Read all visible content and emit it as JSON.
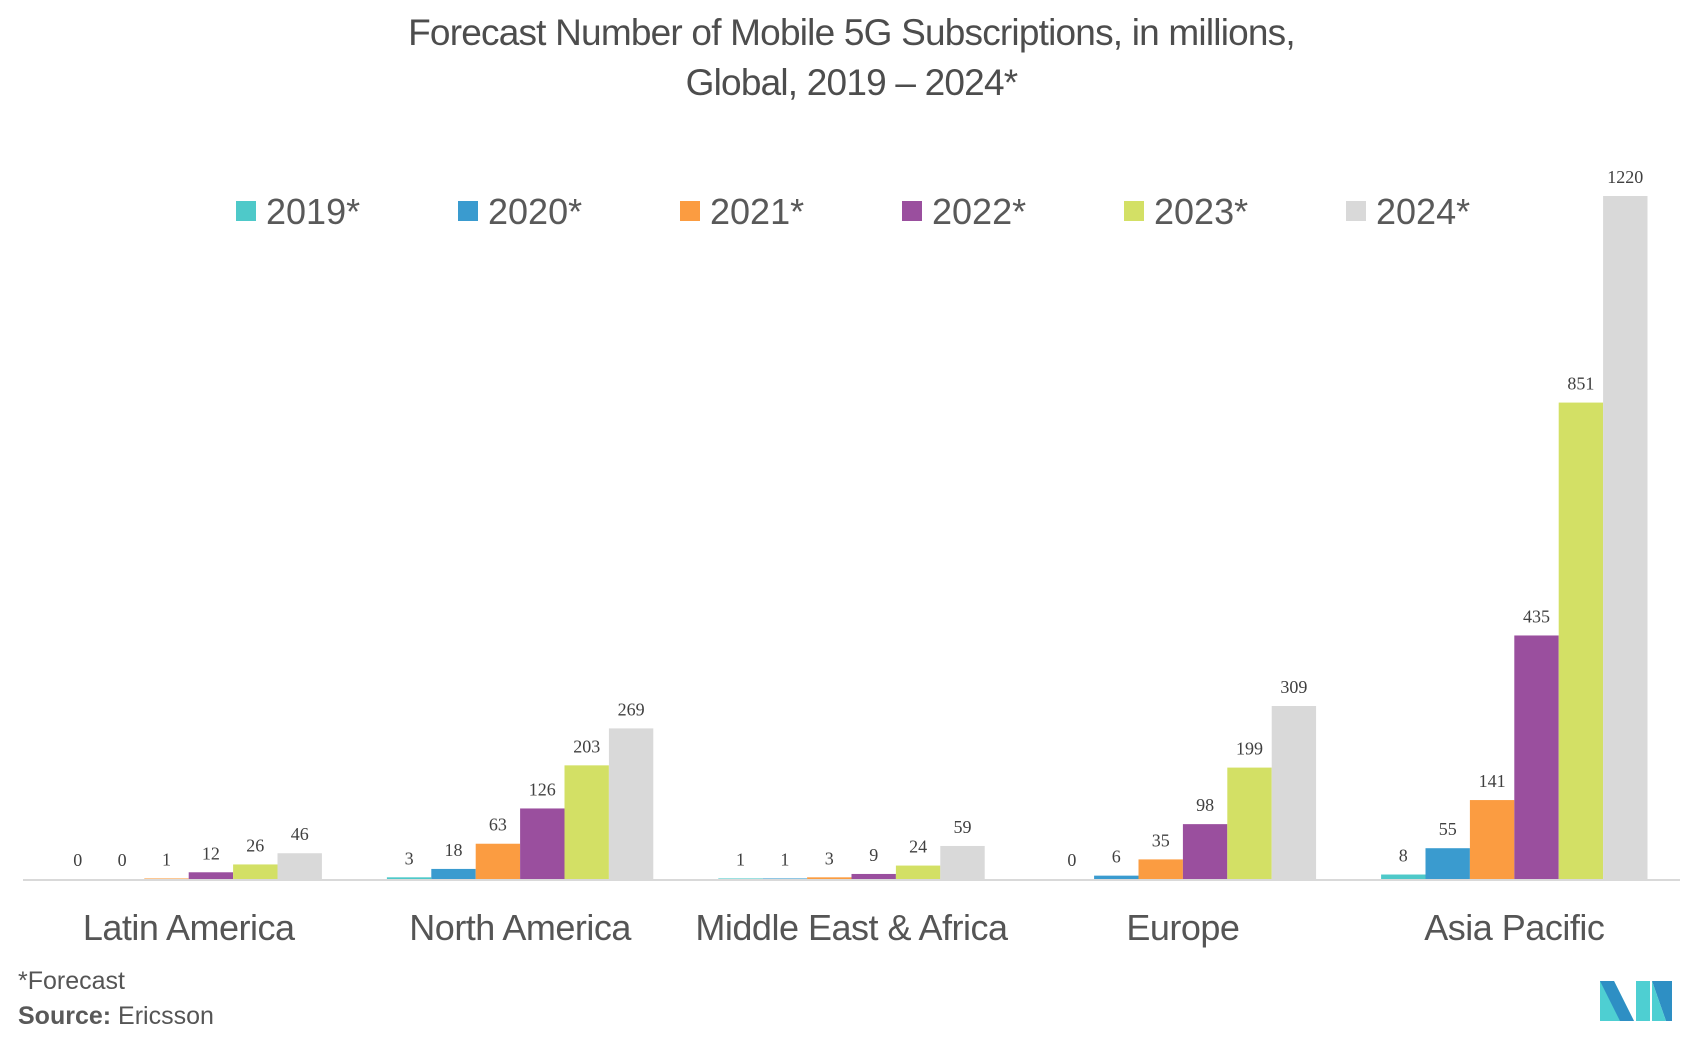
{
  "chart_data": {
    "type": "bar",
    "title_line1": "Forecast Number of Mobile 5G Subscriptions, in millions,",
    "title_line2": "Global, 2019 – 2024*",
    "xlabel": "",
    "ylabel": "",
    "ylim": [
      0,
      1220
    ],
    "grid": false,
    "legend_position": "top",
    "categories": [
      "Latin America",
      "North America",
      "Middle East & Africa",
      "Europe",
      "Asia Pacific"
    ],
    "series": [
      {
        "name": "2019*",
        "color": "#4ec9c9",
        "values": [
          0,
          3,
          1,
          0,
          8
        ]
      },
      {
        "name": "2020*",
        "color": "#3a9bcf",
        "values": [
          0,
          18,
          1,
          6,
          55
        ]
      },
      {
        "name": "2021*",
        "color": "#fb9c41",
        "values": [
          1,
          63,
          3,
          35,
          141
        ]
      },
      {
        "name": "2022*",
        "color": "#9a4f9e",
        "values": [
          12,
          126,
          9,
          98,
          435
        ]
      },
      {
        "name": "2023*",
        "color": "#d3e065",
        "values": [
          26,
          203,
          24,
          199,
          851
        ]
      },
      {
        "name": "2024*",
        "color": "#d9d9d9",
        "values": [
          46,
          269,
          59,
          309,
          1220
        ]
      }
    ]
  },
  "footer": {
    "note": "*Forecast",
    "source_label": "Source:",
    "source_value": "Ericsson"
  },
  "logo": {
    "name": "mordor-intelligence-logo",
    "colors": [
      "#2e8fc4",
      "#4ecfd2"
    ]
  }
}
